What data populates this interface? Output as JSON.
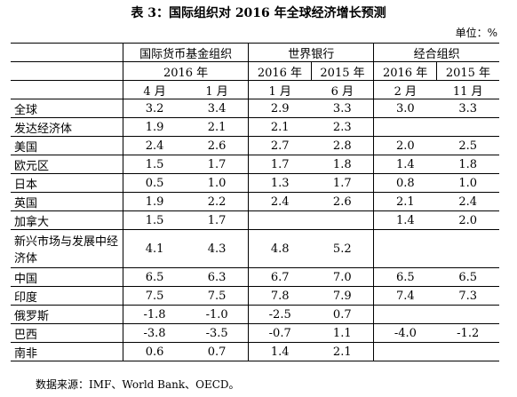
{
  "header": {
    "title": "表 3：国际组织对 2016 年全球经济增长预测",
    "unit": "单位：%"
  },
  "table": {
    "groups": [
      "国际货币基金组织",
      "世界银行",
      "经合组织"
    ],
    "years": [
      "2016 年",
      "2016 年",
      "2015 年",
      "2016 年",
      "2015 年"
    ],
    "months": [
      "4 月",
      "1 月",
      "1 月",
      "6 月",
      "2 月",
      "11 月"
    ],
    "rows": [
      [
        "全球",
        "3.2",
        "3.4",
        "2.9",
        "3.3",
        "3.0",
        "3.3"
      ],
      [
        "发达经济体",
        "1.9",
        "2.1",
        "2.1",
        "2.3",
        null,
        null
      ],
      [
        "美国",
        "2.4",
        "2.6",
        "2.7",
        "2.8",
        "2.0",
        "2.5"
      ],
      [
        "欧元区",
        "1.5",
        "1.7",
        "1.7",
        "1.8",
        "1.4",
        "1.8"
      ],
      [
        "日本",
        "0.5",
        "1.0",
        "1.3",
        "1.7",
        "0.8",
        "1.0"
      ],
      [
        "英国",
        "1.9",
        "2.2",
        "2.4",
        "2.6",
        "2.1",
        "2.4"
      ],
      [
        "加拿大",
        "1.5",
        "1.7",
        null,
        null,
        "1.4",
        "2.0"
      ],
      [
        "新兴市场与发展中经济体",
        "4.1",
        "4.3",
        "4.8",
        "5.2",
        null,
        null
      ],
      [
        "中国",
        "6.5",
        "6.3",
        "6.7",
        "7.0",
        "6.5",
        "6.5"
      ],
      [
        "印度",
        "7.5",
        "7.5",
        "7.8",
        "7.9",
        "7.4",
        "7.3"
      ],
      [
        "俄罗斯",
        "-1.8",
        "-1.0",
        "-2.5",
        "0.7",
        null,
        null
      ],
      [
        "巴西",
        "-3.8",
        "-3.5",
        "-0.7",
        "1.1",
        "-4.0",
        "-1.2"
      ],
      [
        "南非",
        "0.6",
        "0.7",
        "1.4",
        "2.1",
        null,
        null
      ]
    ]
  },
  "footer": {
    "source": "数据来源：IMF、World Bank、OECD。"
  }
}
